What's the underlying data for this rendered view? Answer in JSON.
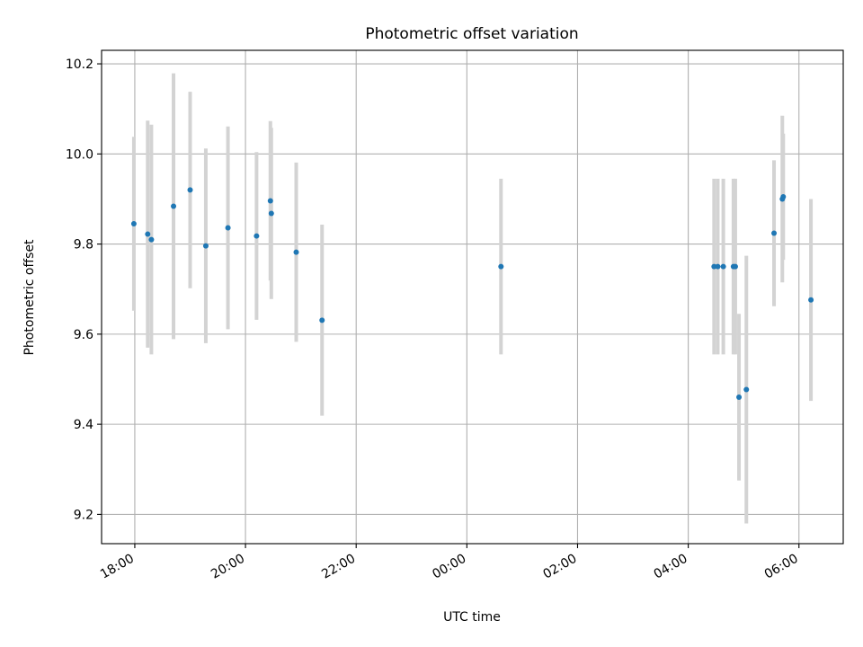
{
  "chart_data": {
    "type": "scatter",
    "title": "Photometric offset variation",
    "xlabel": "UTC time",
    "ylabel": "Photometric offset",
    "x_axis": {
      "kind": "time",
      "range": [
        "17:24",
        "06:48"
      ],
      "ticks": [
        {
          "t": "18:00",
          "label": "18:00"
        },
        {
          "t": "20:00",
          "label": "20:00"
        },
        {
          "t": "22:00",
          "label": "22:00"
        },
        {
          "t": "00:00",
          "label": "00:00"
        },
        {
          "t": "02:00",
          "label": "02:00"
        },
        {
          "t": "04:00",
          "label": "04:00"
        },
        {
          "t": "06:00",
          "label": "06:00"
        }
      ]
    },
    "y_axis": {
      "range": [
        9.135,
        10.23
      ],
      "ticks": [
        {
          "v": 9.2,
          "label": "9.2"
        },
        {
          "v": 9.4,
          "label": "9.4"
        },
        {
          "v": 9.6,
          "label": "9.6"
        },
        {
          "v": 9.8,
          "label": "9.8"
        },
        {
          "v": 10.0,
          "label": "10.0"
        },
        {
          "v": 10.2,
          "label": "10.2"
        }
      ]
    },
    "grid": true,
    "points": [
      {
        "t": "17:59",
        "y": 9.845,
        "err": 0.193
      },
      {
        "t": "18:14",
        "y": 9.822,
        "err": 0.252
      },
      {
        "t": "18:18",
        "y": 9.81,
        "err": 0.255
      },
      {
        "t": "18:42",
        "y": 9.884,
        "err": 0.295
      },
      {
        "t": "19:00",
        "y": 9.92,
        "err": 0.218
      },
      {
        "t": "19:17",
        "y": 9.796,
        "err": 0.216
      },
      {
        "t": "19:41",
        "y": 9.836,
        "err": 0.225
      },
      {
        "t": "20:12",
        "y": 9.818,
        "err": 0.186
      },
      {
        "t": "20:27",
        "y": 9.896,
        "err": 0.177
      },
      {
        "t": "20:28",
        "y": 9.868,
        "err": 0.19
      },
      {
        "t": "20:55",
        "y": 9.782,
        "err": 0.199
      },
      {
        "t": "21:23",
        "y": 9.631,
        "err": 0.212
      },
      {
        "t": "00:37",
        "y": 9.75,
        "err": 0.195
      },
      {
        "t": "04:28",
        "y": 9.75,
        "err": 0.195
      },
      {
        "t": "04:32",
        "y": 9.75,
        "err": 0.195
      },
      {
        "t": "04:38",
        "y": 9.75,
        "err": 0.195
      },
      {
        "t": "04:49",
        "y": 9.75,
        "err": 0.195
      },
      {
        "t": "04:51",
        "y": 9.75,
        "err": 0.195
      },
      {
        "t": "04:55",
        "y": 9.46,
        "err": 0.185
      },
      {
        "t": "05:03",
        "y": 9.477,
        "err": 0.297
      },
      {
        "t": "05:33",
        "y": 9.824,
        "err": 0.162
      },
      {
        "t": "05:42",
        "y": 9.9,
        "err": 0.185
      },
      {
        "t": "05:43",
        "y": 9.905,
        "err": 0.14
      },
      {
        "t": "06:13",
        "y": 9.676,
        "err": 0.224
      }
    ],
    "colors": {
      "marker": "#1f77b4",
      "errorbar": "#d3d3d3",
      "grid": "#b0b0b0",
      "axes": "#000000"
    }
  }
}
